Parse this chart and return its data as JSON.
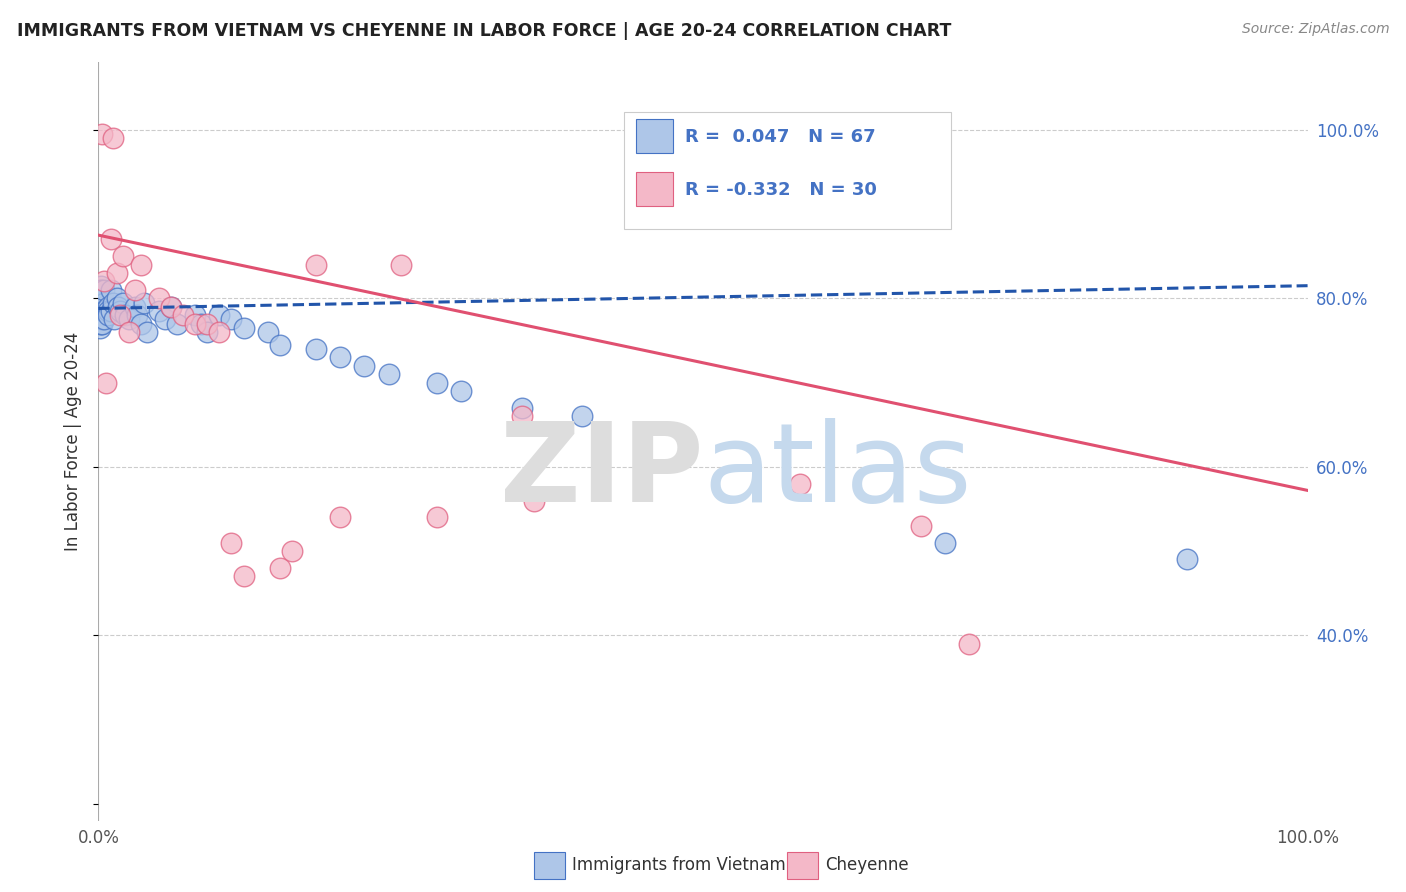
{
  "title": "IMMIGRANTS FROM VIETNAM VS CHEYENNE IN LABOR FORCE | AGE 20-24 CORRELATION CHART",
  "source": "Source: ZipAtlas.com",
  "ylabel": "In Labor Force | Age 20-24",
  "blue_color": "#aec6e8",
  "blue_edge_color": "#4472c4",
  "pink_color": "#f4b8c8",
  "pink_edge_color": "#e06080",
  "blue_line_color": "#2255aa",
  "pink_line_color": "#e05070",
  "legend_text_color": "#4472c4",
  "bottom_legend_blue": "Immigrants from Vietnam",
  "bottom_legend_pink": "Cheyenne",
  "blue_R": 0.047,
  "blue_N": 67,
  "pink_R": -0.332,
  "pink_N": 30,
  "xlim": [
    0.0,
    1.0
  ],
  "ylim": [
    0.18,
    1.08
  ],
  "blue_line_x0": 0.0,
  "blue_line_y0": 0.788,
  "blue_line_x1": 1.0,
  "blue_line_y1": 0.815,
  "pink_line_x0": 0.0,
  "pink_line_y0": 0.875,
  "pink_line_x1": 1.0,
  "pink_line_y1": 0.572,
  "blue_x": [
    0.001,
    0.001,
    0.001,
    0.001,
    0.001,
    0.001,
    0.001,
    0.001,
    0.001,
    0.001,
    0.002,
    0.002,
    0.002,
    0.002,
    0.002,
    0.002,
    0.002,
    0.002,
    0.003,
    0.003,
    0.003,
    0.003,
    0.003,
    0.005,
    0.005,
    0.005,
    0.005,
    0.008,
    0.008,
    0.008,
    0.01,
    0.01,
    0.012,
    0.013,
    0.015,
    0.016,
    0.018,
    0.02,
    0.022,
    0.025,
    0.03,
    0.032,
    0.035,
    0.038,
    0.04,
    0.05,
    0.055,
    0.06,
    0.065,
    0.08,
    0.085,
    0.09,
    0.1,
    0.11,
    0.12,
    0.14,
    0.15,
    0.18,
    0.2,
    0.22,
    0.24,
    0.28,
    0.3,
    0.35,
    0.4,
    0.7,
    0.9
  ],
  "blue_y": [
    0.795,
    0.79,
    0.785,
    0.78,
    0.775,
    0.77,
    0.765,
    0.81,
    0.805,
    0.8,
    0.795,
    0.79,
    0.785,
    0.78,
    0.775,
    0.815,
    0.81,
    0.77,
    0.79,
    0.785,
    0.78,
    0.775,
    0.77,
    0.795,
    0.785,
    0.775,
    0.81,
    0.79,
    0.785,
    0.78,
    0.81,
    0.785,
    0.795,
    0.775,
    0.8,
    0.79,
    0.785,
    0.795,
    0.78,
    0.775,
    0.79,
    0.78,
    0.77,
    0.795,
    0.76,
    0.785,
    0.775,
    0.79,
    0.77,
    0.78,
    0.77,
    0.76,
    0.78,
    0.775,
    0.765,
    0.76,
    0.745,
    0.74,
    0.73,
    0.72,
    0.71,
    0.7,
    0.69,
    0.67,
    0.66,
    0.51,
    0.49
  ],
  "pink_x": [
    0.003,
    0.005,
    0.006,
    0.01,
    0.012,
    0.015,
    0.018,
    0.02,
    0.025,
    0.03,
    0.035,
    0.05,
    0.06,
    0.07,
    0.08,
    0.09,
    0.1,
    0.11,
    0.12,
    0.15,
    0.16,
    0.18,
    0.2,
    0.25,
    0.28,
    0.35,
    0.36,
    0.58,
    0.68,
    0.72
  ],
  "pink_y": [
    0.995,
    0.82,
    0.7,
    0.87,
    0.99,
    0.83,
    0.78,
    0.85,
    0.76,
    0.81,
    0.84,
    0.8,
    0.79,
    0.78,
    0.77,
    0.77,
    0.76,
    0.51,
    0.47,
    0.48,
    0.5,
    0.84,
    0.54,
    0.84,
    0.54,
    0.66,
    0.56,
    0.58,
    0.53,
    0.39
  ]
}
